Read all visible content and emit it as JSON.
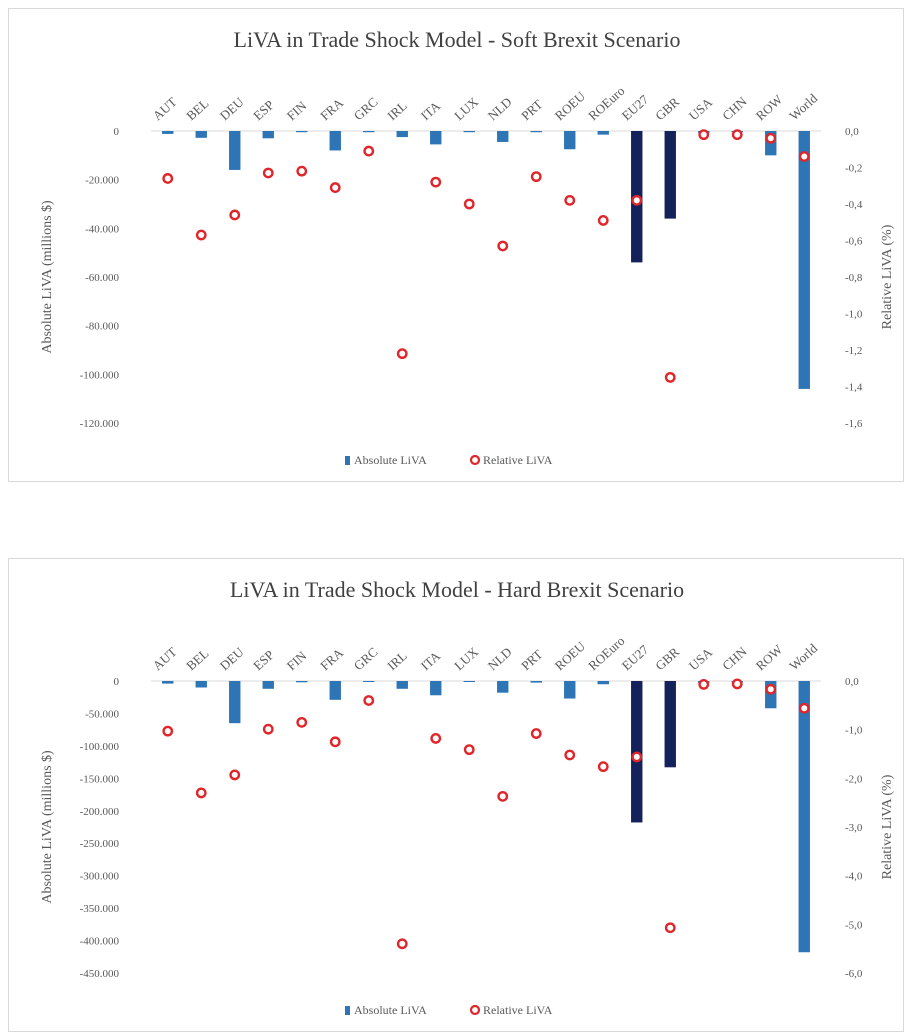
{
  "chart_data": [
    {
      "type": "bar",
      "title": "LiVA in Trade Shock Model - Soft Brexit Scenario",
      "xlabel": "",
      "ylabel": "Absolute LiVA (millions $)",
      "y2label": "Relative LiVA (%)",
      "categories": [
        "AUT",
        "BEL",
        "DEU",
        "ESP",
        "FIN",
        "FRA",
        "GRC",
        "IRL",
        "ITA",
        "LUX",
        "NLD",
        "PRT",
        "ROEU",
        "ROEuro",
        "EU27",
        "GBR",
        "USA",
        "CHN",
        "ROW",
        "World"
      ],
      "ylim": [
        -120000,
        0
      ],
      "yticks": [
        "0",
        "-20.000",
        "-40.000",
        "-60.000",
        "-80.000",
        "-100.000",
        "-120.000"
      ],
      "y2lim": [
        -1.6,
        0
      ],
      "y2ticks": [
        "0,0",
        "-0,2",
        "-0,4",
        "-0,6",
        "-0,8",
        "-1,0",
        "-1,2",
        "-1,4",
        "-1,6"
      ],
      "legend_position": "bottom",
      "grid": false,
      "colors": {
        "bar": "#2e75b6",
        "bar_highlight": "#14215a",
        "marker": "#e0262a"
      },
      "highlight_categories": [
        "EU27",
        "GBR"
      ],
      "series": [
        {
          "name": "Absolute LiVA",
          "axis": "left",
          "kind": "bar",
          "values": [
            -1200,
            -2800,
            -16000,
            -3000,
            -500,
            -8000,
            -500,
            -2500,
            -5500,
            -500,
            -4500,
            -500,
            -7500,
            -1500,
            -54000,
            -36000,
            -800,
            -500,
            -10000,
            -106000
          ]
        },
        {
          "name": "Relative LiVA",
          "axis": "right",
          "kind": "scatter",
          "values": [
            -0.26,
            -0.57,
            -0.46,
            -0.23,
            -0.22,
            -0.31,
            -0.11,
            -1.22,
            -0.28,
            -0.4,
            -0.63,
            -0.25,
            -0.38,
            -0.49,
            -0.38,
            -1.35,
            -0.02,
            -0.02,
            -0.04,
            -0.14
          ]
        }
      ]
    },
    {
      "type": "bar",
      "title": "LiVA in Trade Shock Model - Hard Brexit Scenario",
      "xlabel": "",
      "ylabel": "Absolute LiVA (millions $)",
      "y2label": "Relative LiVA (%)",
      "categories": [
        "AUT",
        "BEL",
        "DEU",
        "ESP",
        "FIN",
        "FRA",
        "GRC",
        "IRL",
        "ITA",
        "LUX",
        "NLD",
        "PRT",
        "ROEU",
        "ROEuro",
        "EU27",
        "GBR",
        "USA",
        "CHN",
        "ROW",
        "World"
      ],
      "ylim": [
        -450000,
        0
      ],
      "yticks": [
        "0",
        "-50.000",
        "-100.000",
        "-150.000",
        "-200.000",
        "-250.000",
        "-300.000",
        "-350.000",
        "-400.000",
        "-450.000"
      ],
      "y2lim": [
        -6.0,
        0
      ],
      "y2ticks": [
        "0,0",
        "-1,0",
        "-2,0",
        "-3,0",
        "-4,0",
        "-5,0",
        "-6,0"
      ],
      "legend_position": "bottom",
      "grid": false,
      "colors": {
        "bar": "#2e75b6",
        "bar_highlight": "#14215a",
        "marker": "#e0262a"
      },
      "highlight_categories": [
        "EU27",
        "GBR"
      ],
      "series": [
        {
          "name": "Absolute LiVA",
          "axis": "left",
          "kind": "bar",
          "values": [
            -4000,
            -10000,
            -65000,
            -12000,
            -2000,
            -29000,
            -1500,
            -12000,
            -22000,
            -1000,
            -18000,
            -2500,
            -27000,
            -5000,
            -218000,
            -133000,
            -3000,
            -2000,
            -42000,
            -418000
          ]
        },
        {
          "name": "Relative LiVA",
          "axis": "right",
          "kind": "scatter",
          "values": [
            -1.03,
            -2.3,
            -1.93,
            -0.99,
            -0.85,
            -1.25,
            -0.4,
            -5.4,
            -1.18,
            -1.41,
            -2.37,
            -1.08,
            -1.52,
            -1.76,
            -1.56,
            -5.07,
            -0.07,
            -0.06,
            -0.17,
            -0.56
          ]
        }
      ]
    }
  ]
}
